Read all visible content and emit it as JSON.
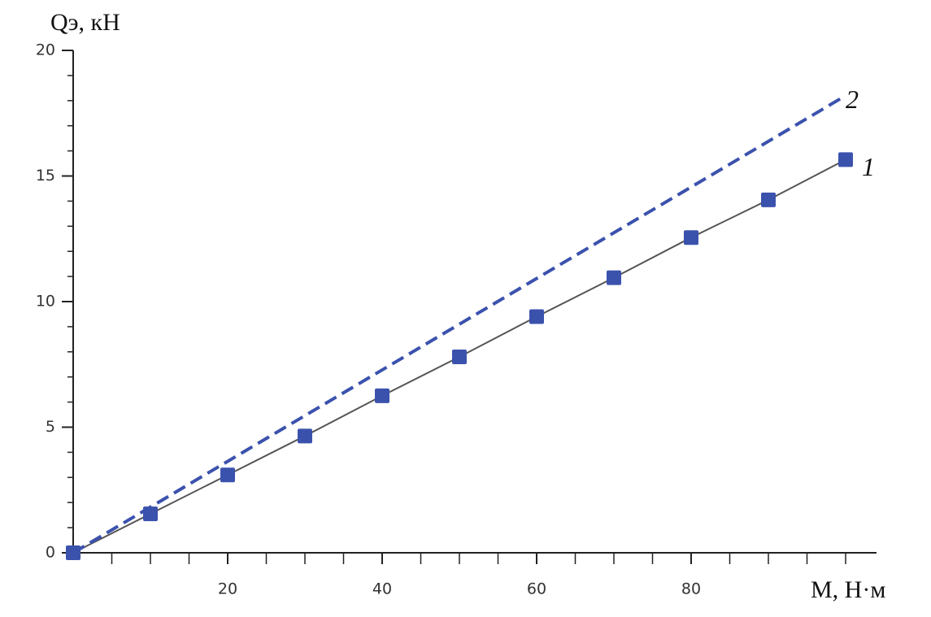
{
  "chart_data": {
    "type": "line",
    "x_label": "M, Н·м",
    "y_label": "Qэ, кН",
    "xlim": [
      0,
      104
    ],
    "ylim": [
      0,
      20
    ],
    "xticks": [
      20,
      40,
      60,
      80
    ],
    "yticks": [
      0,
      5,
      10,
      15,
      20
    ],
    "xminorticks": [
      5,
      10,
      15,
      25,
      30,
      35,
      45,
      50,
      55,
      65,
      70,
      75,
      85,
      90,
      95,
      100
    ],
    "yminorticks": [
      1,
      2,
      3,
      4,
      6,
      7,
      8,
      9,
      11,
      12,
      13,
      14,
      16,
      17,
      18,
      19
    ],
    "series": [
      {
        "name": "1",
        "color": "#3b52ad",
        "line_color": "#555555",
        "dashed": false,
        "markers": true,
        "x": [
          0,
          10,
          20,
          30,
          40,
          50,
          60,
          70,
          80,
          90,
          100
        ],
        "values": [
          0,
          1.55,
          3.1,
          4.65,
          6.25,
          7.8,
          9.4,
          10.95,
          12.55,
          14.05,
          15.65
        ]
      },
      {
        "name": "2",
        "color": "#3b52ad",
        "line_color": "#3b52ad",
        "dashed": true,
        "markers": false,
        "x": [
          0,
          100
        ],
        "values": [
          0,
          18.2
        ]
      }
    ]
  }
}
